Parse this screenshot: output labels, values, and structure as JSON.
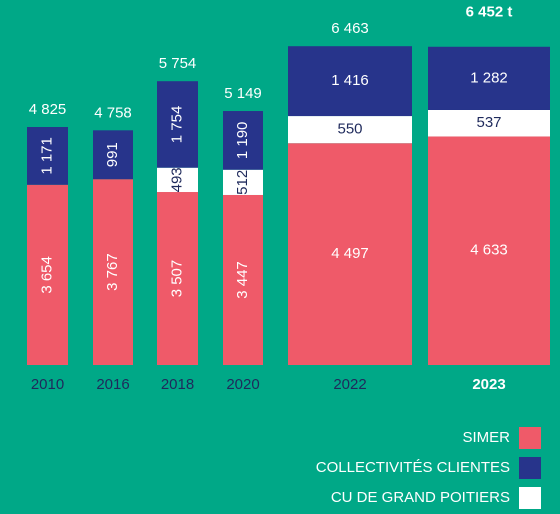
{
  "chart_data": {
    "type": "stacked_bar",
    "categories": [
      "2010",
      "2016",
      "2018",
      "2020",
      "2022",
      "2023"
    ],
    "series": [
      {
        "name": "SIMER",
        "color": "#ef5a69",
        "values": [
          3654,
          3767,
          3507,
          3447,
          4497,
          4633
        ],
        "value_labels": [
          "3 654",
          "3 767",
          "3 507",
          "3 447",
          "4 497",
          "4 633"
        ]
      },
      {
        "name": "CU DE GRAND POITIERS",
        "color": "#ffffff",
        "values": [
          null,
          null,
          493,
          512,
          550,
          537
        ],
        "value_labels": [
          null,
          null,
          "493",
          "512",
          "550",
          "537"
        ]
      },
      {
        "name": "COLLECTIVITÉS CLIENTES",
        "color": "#27348b",
        "values": [
          1171,
          991,
          1754,
          1190,
          1416,
          1282
        ],
        "value_labels": [
          "1 171",
          "991",
          "1 754",
          "1 190",
          "1 416",
          "1 282"
        ]
      }
    ],
    "totals": {
      "values": [
        4825,
        4758,
        5754,
        5149,
        6463,
        6452
      ],
      "value_labels": [
        "4 825",
        "4 758",
        "5 754",
        "5 149",
        "6 463",
        "6 452 t"
      ]
    },
    "ylim": [
      0,
      7400
    ],
    "background": "#00a887"
  }
}
